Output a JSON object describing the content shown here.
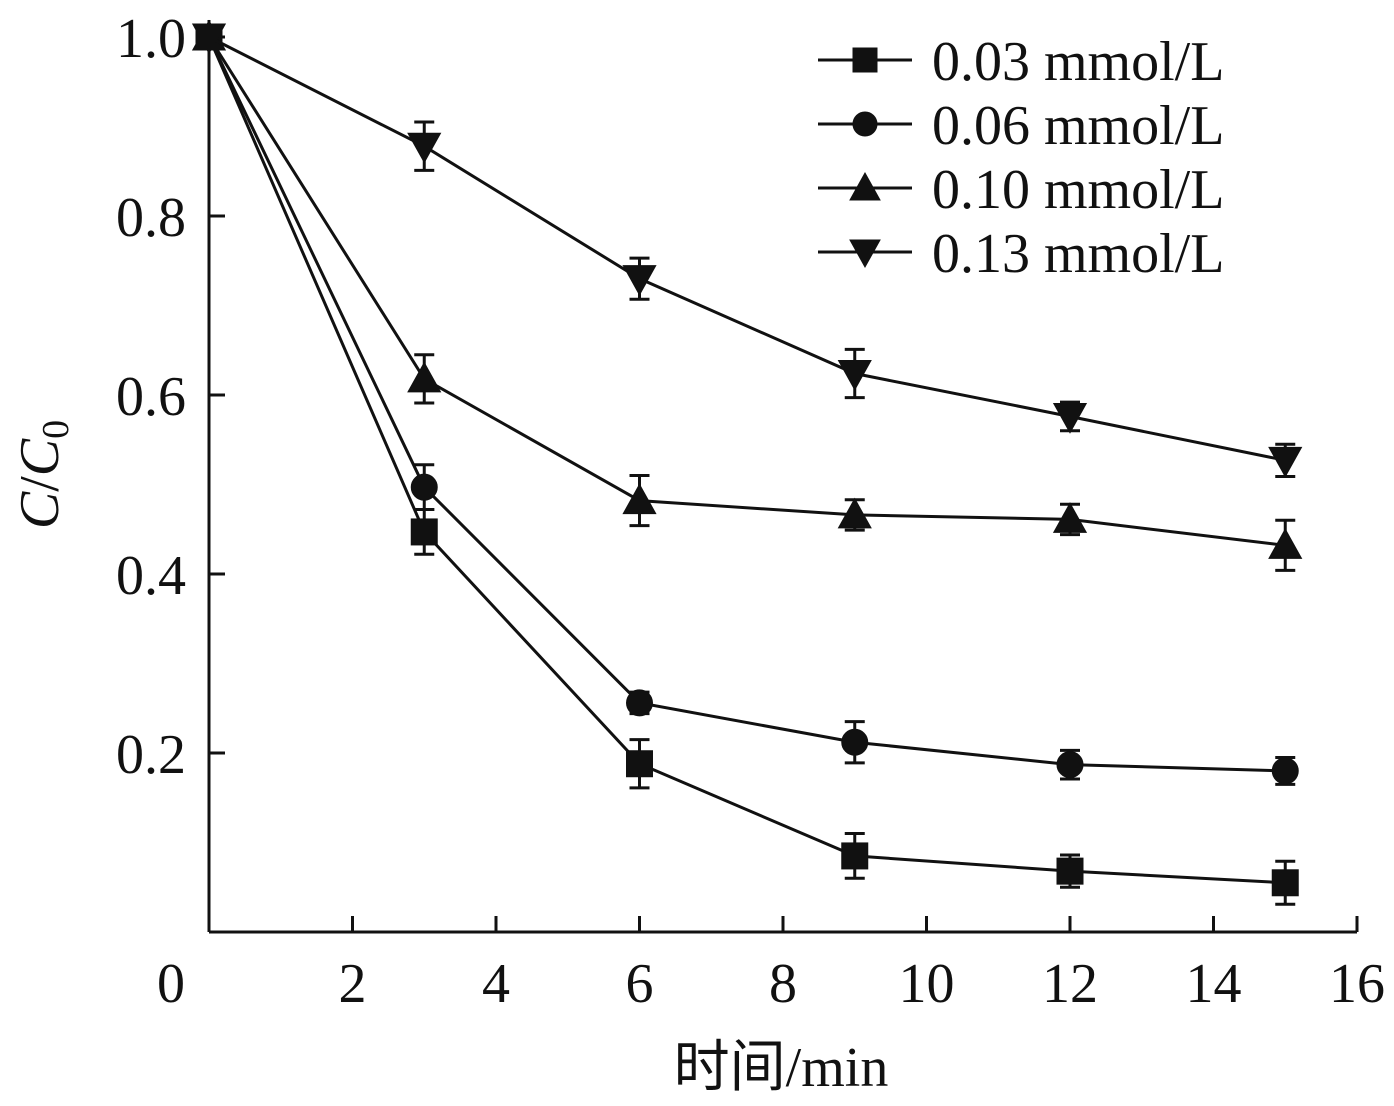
{
  "chart_data": {
    "type": "line",
    "xlabel": "时间/min",
    "ylabel_parts": [
      "C",
      "/",
      "C",
      "0"
    ],
    "xlim": [
      0,
      16
    ],
    "ylim": [
      0,
      1.0
    ],
    "x_ticks": [
      0,
      2,
      4,
      6,
      8,
      10,
      12,
      14,
      16
    ],
    "x_tick_labels": [
      "0",
      "2",
      "4",
      "6",
      "8",
      "10",
      "12",
      "14",
      "16"
    ],
    "y_ticks": [
      0.2,
      0.4,
      0.6,
      0.8,
      1.0
    ],
    "y_tick_labels": [
      "0.2",
      "0.4",
      "0.6",
      "0.8",
      "1.0"
    ],
    "grid": false,
    "legend": "top-right",
    "x": [
      0,
      3,
      6,
      9,
      12,
      15
    ],
    "series": [
      {
        "name": "0.03 mmol/L",
        "marker": "square",
        "values": [
          1.0,
          0.447,
          0.188,
          0.085,
          0.068,
          0.055
        ],
        "errors": [
          0,
          0.025,
          0.027,
          0.025,
          0.018,
          0.024
        ]
      },
      {
        "name": "0.06 mmol/L",
        "marker": "circle",
        "values": [
          1.0,
          0.497,
          0.256,
          0.212,
          0.187,
          0.18
        ],
        "errors": [
          0,
          0.025,
          0.012,
          0.023,
          0.016,
          0.015
        ]
      },
      {
        "name": "0.10 mmol/L",
        "marker": "triangle-up",
        "values": [
          1.0,
          0.618,
          0.482,
          0.466,
          0.461,
          0.432
        ],
        "errors": [
          0,
          0.027,
          0.028,
          0.017,
          0.017,
          0.028
        ]
      },
      {
        "name": "0.13 mmol/L",
        "marker": "triangle-down",
        "values": [
          1.0,
          0.878,
          0.73,
          0.624,
          0.576,
          0.527
        ],
        "errors": [
          0,
          0.027,
          0.023,
          0.027,
          0.016,
          0.018
        ]
      }
    ]
  }
}
